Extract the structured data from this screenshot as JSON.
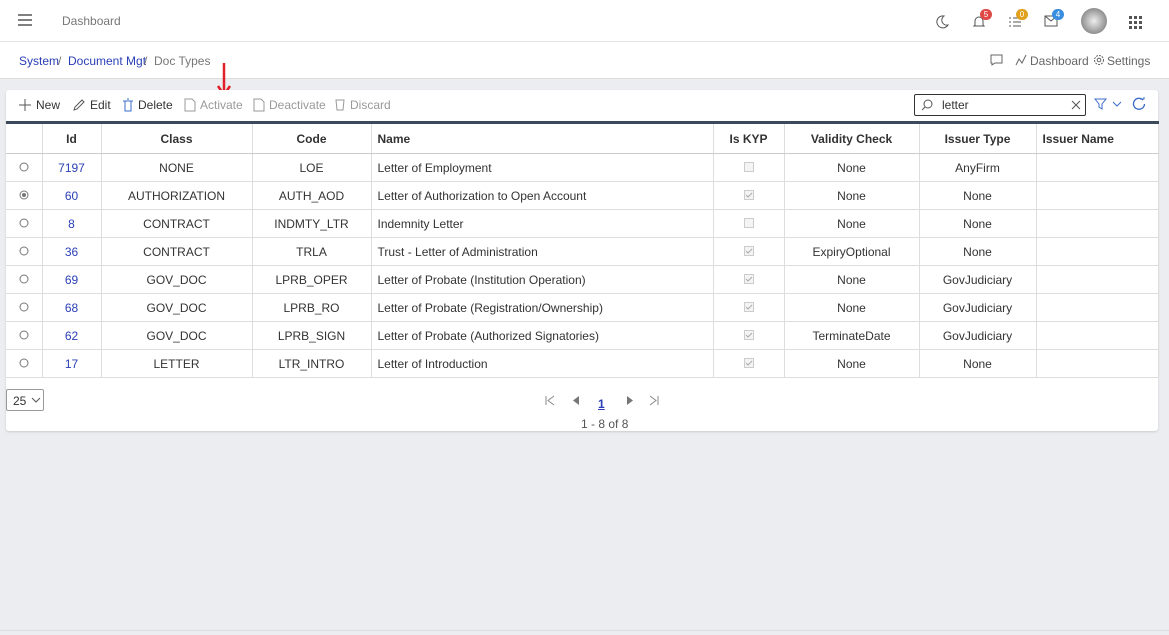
{
  "header": {
    "title": "Dashboard",
    "badges": {
      "notifications": 5,
      "tasks": 0,
      "messages": 4
    }
  },
  "breadcrumb": [
    "System",
    "Document Mgt",
    "Doc Types"
  ],
  "top_actions": [
    "Dashboard",
    "Settings"
  ],
  "toolbar": [
    "New",
    "Edit",
    "Delete",
    "Activate",
    "Deactivate",
    "Discard"
  ],
  "search": "letter",
  "table": {
    "columns": [
      "Id",
      "Class",
      "Code",
      "Name",
      "Is KYP",
      "Validity Check",
      "Issuer Type",
      "Issuer Name"
    ],
    "rows": [
      [
        "7197",
        "NONE",
        "LOE",
        "Letter of Employment",
        "None",
        "AnyFirm"
      ],
      [
        "60",
        "AUTHORIZATION",
        "AUTH_AOD",
        "Letter of Authorization to Open Account",
        "None",
        "None"
      ],
      [
        "8",
        "CONTRACT",
        "INDMTY_LTR",
        "Indemnity Letter",
        "None",
        "None"
      ],
      [
        "36",
        "CONTRACT",
        "TRLA",
        "Trust - Letter of Administration",
        "ExpiryOptional",
        "None"
      ],
      [
        "69",
        "GOV_DOC",
        "LPRB_OPER",
        "Letter of Probate (Institution Operation)",
        "None",
        "GovJudiciary"
      ],
      [
        "68",
        "GOV_DOC",
        "LPRB_RO",
        "Letter of Probate (Registration/Ownership)",
        "None",
        "GovJudiciary"
      ],
      [
        "62",
        "GOV_DOC",
        "LPRB_SIGN",
        "Letter of Probate (Authorized Signatories)",
        "TerminateDate",
        "GovJudiciary"
      ],
      [
        "17",
        "LETTER",
        "LTR_INTRO",
        "Letter of Introduction",
        "None",
        "None"
      ]
    ],
    "kyp": [
      false,
      true,
      false,
      true,
      true,
      true,
      true,
      true
    ],
    "selected": [
      false,
      true,
      false,
      false,
      false,
      false,
      false,
      false
    ]
  },
  "pager": {
    "page_size": 25,
    "page": 1,
    "summary": "1 - 8 of 8"
  }
}
